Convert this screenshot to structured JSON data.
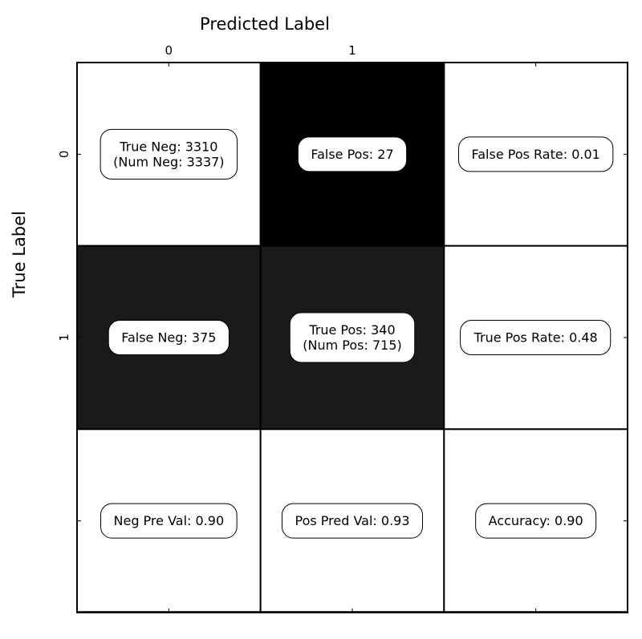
{
  "chart_data": {
    "type": "heatmap",
    "xlabel": "Predicted Label",
    "ylabel": "True Label",
    "x_tick_labels": [
      "0",
      "1",
      ""
    ],
    "y_tick_labels": [
      "0",
      "1",
      ""
    ],
    "colors": {
      "background": "#ffffff",
      "black": "#000000",
      "dark": "#1a1a1a",
      "white": "#ffffff",
      "border": "#000000"
    },
    "cells": [
      {
        "row": 0,
        "col": 0,
        "fill": "white",
        "lines": [
          "True Neg: 3310",
          "(Num Neg: 3337)"
        ]
      },
      {
        "row": 0,
        "col": 1,
        "fill": "black",
        "lines": [
          "False Pos: 27"
        ]
      },
      {
        "row": 0,
        "col": 2,
        "fill": "white",
        "lines": [
          "False Pos Rate: 0.01"
        ]
      },
      {
        "row": 1,
        "col": 0,
        "fill": "dark",
        "lines": [
          "False Neg: 375"
        ]
      },
      {
        "row": 1,
        "col": 1,
        "fill": "dark",
        "lines": [
          "True Pos: 340",
          "(Num Pos: 715)"
        ]
      },
      {
        "row": 1,
        "col": 2,
        "fill": "white",
        "lines": [
          "True Pos Rate: 0.48"
        ]
      },
      {
        "row": 2,
        "col": 0,
        "fill": "white",
        "lines": [
          "Neg Pre Val: 0.90"
        ]
      },
      {
        "row": 2,
        "col": 1,
        "fill": "white",
        "lines": [
          "Pos Pred Val: 0.93"
        ]
      },
      {
        "row": 2,
        "col": 2,
        "fill": "white",
        "lines": [
          "Accuracy: 0.90"
        ]
      }
    ]
  }
}
